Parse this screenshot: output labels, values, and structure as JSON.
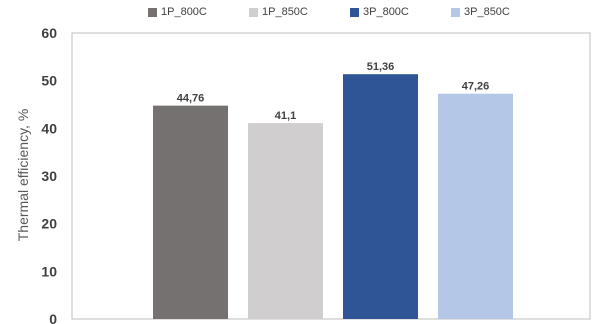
{
  "chart_data": {
    "type": "bar",
    "title": "",
    "xlabel": "",
    "ylabel": "Thermal efficiency, %",
    "ylim": [
      0,
      60
    ],
    "yticks": [
      0,
      10,
      20,
      30,
      40,
      50,
      60
    ],
    "grid": false,
    "legend_position": "top",
    "series": [
      {
        "name": "1P_800C",
        "value": 44.76,
        "label": "44,76",
        "color": "#767171"
      },
      {
        "name": "1P_850C",
        "value": 41.1,
        "label": "41,1",
        "color": "#d0cece"
      },
      {
        "name": "3P_800C",
        "value": 51.36,
        "label": "51,36",
        "color": "#2f5597"
      },
      {
        "name": "3P_850C",
        "value": 47.26,
        "label": "47,26",
        "color": "#b4c7e7"
      }
    ]
  }
}
